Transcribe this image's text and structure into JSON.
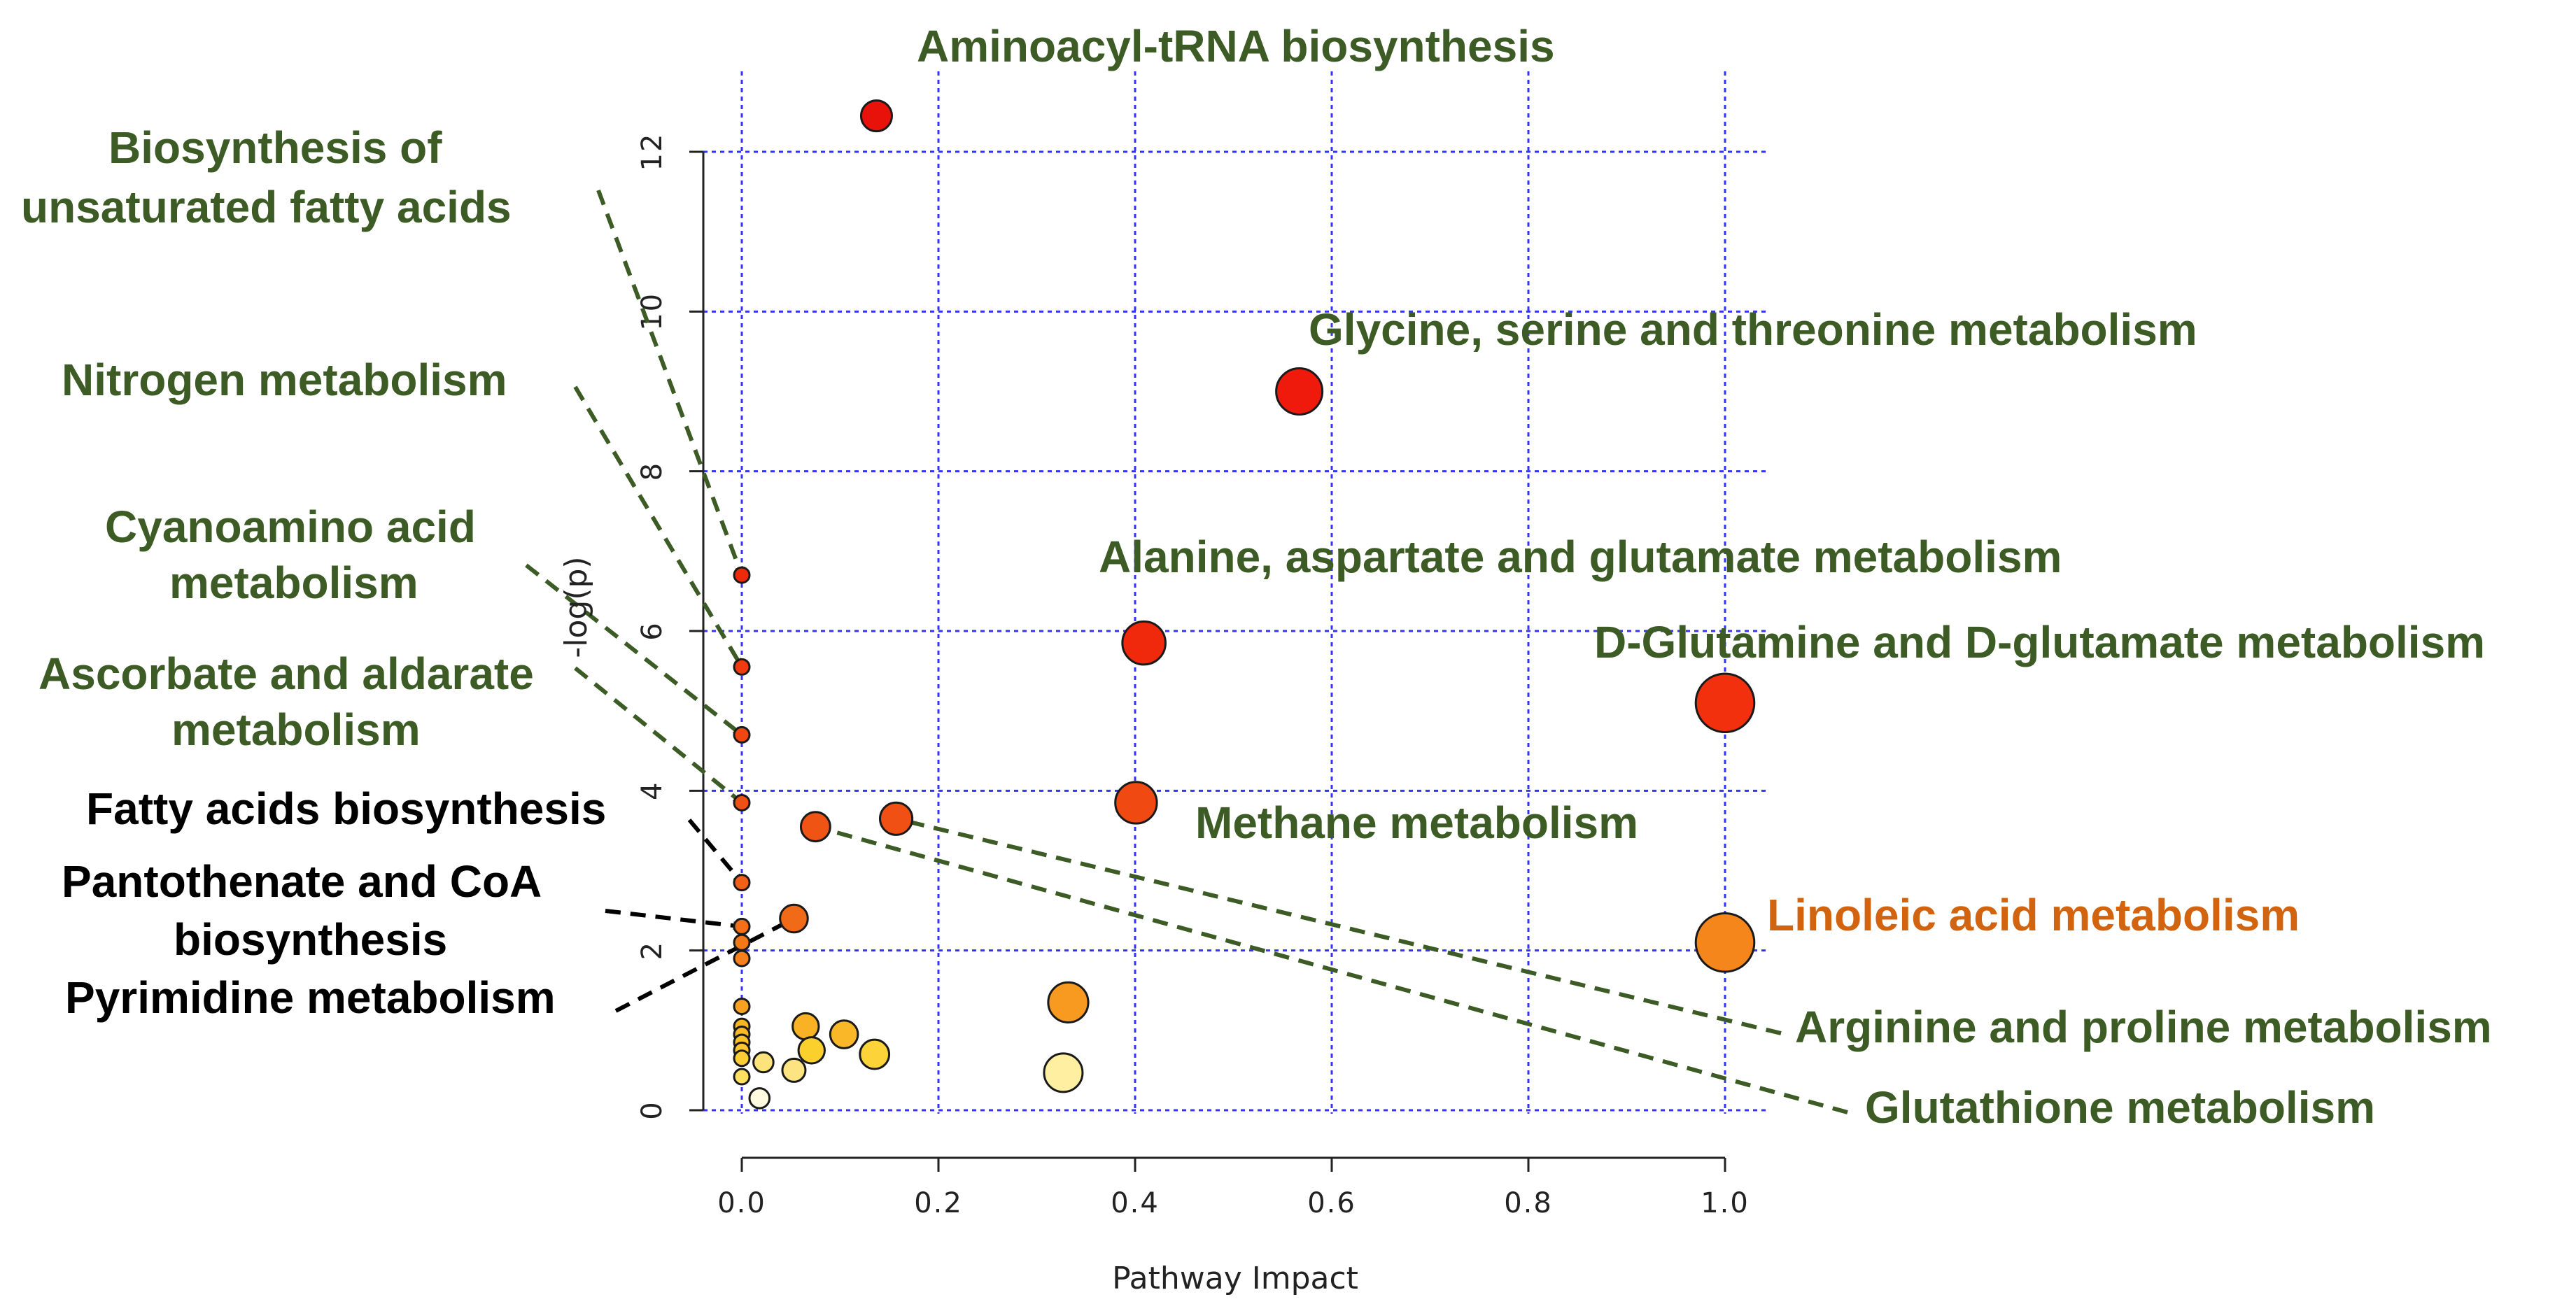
{
  "chart_data": {
    "type": "scatter",
    "title": "",
    "xlabel": "Pathway Impact",
    "ylabel": "-log(p)",
    "xlim": [
      -0.04,
      1.04
    ],
    "ylim": [
      -0.3,
      13.3
    ],
    "xticks": [
      0.0,
      0.2,
      0.4,
      0.6,
      0.8,
      1.0
    ],
    "yticks": [
      0,
      2,
      4,
      6,
      8,
      10,
      12
    ],
    "xtick_labels": [
      "0.0",
      "0.2",
      "0.4",
      "0.6",
      "0.8",
      "1.0"
    ],
    "ytick_labels": [
      "0",
      "2",
      "4",
      "6",
      "8",
      "10",
      "12"
    ],
    "grid": true,
    "points": [
      {
        "x": 0.137,
        "y": 12.45,
        "size": 2.0,
        "color": "#e8120a"
      },
      {
        "x": 0.567,
        "y": 9.0,
        "size": 3.0,
        "color": "#ef1a0c"
      },
      {
        "x": 0.409,
        "y": 5.85,
        "size": 2.8,
        "color": "#f0280c"
      },
      {
        "x": 1.0,
        "y": 5.1,
        "size": 3.8,
        "color": "#f2300e"
      },
      {
        "x": 0.401,
        "y": 3.85,
        "size": 2.7,
        "color": "#f04a12"
      },
      {
        "x": 0.157,
        "y": 3.65,
        "size": 2.1,
        "color": "#f05014"
      },
      {
        "x": 0.075,
        "y": 3.55,
        "size": 1.9,
        "color": "#f05414"
      },
      {
        "x": 1.0,
        "y": 2.1,
        "size": 3.8,
        "color": "#f5861c"
      },
      {
        "x": 0.053,
        "y": 2.4,
        "size": 1.8,
        "color": "#f06a18"
      },
      {
        "x": 0.0,
        "y": 6.7,
        "size": 1.0,
        "color": "#ef2a0c"
      },
      {
        "x": 0.0,
        "y": 5.55,
        "size": 1.0,
        "color": "#f03a10"
      },
      {
        "x": 0.0,
        "y": 4.7,
        "size": 1.0,
        "color": "#f04612"
      },
      {
        "x": 0.0,
        "y": 3.85,
        "size": 1.0,
        "color": "#f05014"
      },
      {
        "x": 0.0,
        "y": 2.85,
        "size": 1.0,
        "color": "#f26018"
      },
      {
        "x": 0.0,
        "y": 2.3,
        "size": 1.0,
        "color": "#f47018"
      },
      {
        "x": 0.0,
        "y": 2.1,
        "size": 1.0,
        "color": "#f47818"
      },
      {
        "x": 0.0,
        "y": 1.9,
        "size": 1.0,
        "color": "#f5801c"
      },
      {
        "x": 0.0,
        "y": 1.3,
        "size": 1.0,
        "color": "#f8a020"
      },
      {
        "x": 0.0,
        "y": 1.05,
        "size": 1.0,
        "color": "#f9b424"
      },
      {
        "x": 0.0,
        "y": 0.95,
        "size": 1.0,
        "color": "#fab828"
      },
      {
        "x": 0.0,
        "y": 0.85,
        "size": 1.0,
        "color": "#fbc02a"
      },
      {
        "x": 0.0,
        "y": 0.75,
        "size": 1.0,
        "color": "#fcc62e"
      },
      {
        "x": 0.0,
        "y": 0.65,
        "size": 1.0,
        "color": "#fccc34"
      },
      {
        "x": 0.0,
        "y": 0.42,
        "size": 1.0,
        "color": "#fde060"
      },
      {
        "x": 0.332,
        "y": 1.35,
        "size": 2.6,
        "color": "#f89a20"
      },
      {
        "x": 0.065,
        "y": 1.05,
        "size": 1.7,
        "color": "#f9b224"
      },
      {
        "x": 0.104,
        "y": 0.95,
        "size": 1.8,
        "color": "#fab828"
      },
      {
        "x": 0.071,
        "y": 0.75,
        "size": 1.7,
        "color": "#fcd02c"
      },
      {
        "x": 0.135,
        "y": 0.7,
        "size": 1.9,
        "color": "#fcd43a"
      },
      {
        "x": 0.022,
        "y": 0.6,
        "size": 1.3,
        "color": "#fde47a"
      },
      {
        "x": 0.053,
        "y": 0.5,
        "size": 1.5,
        "color": "#fde480"
      },
      {
        "x": 0.327,
        "y": 0.47,
        "size": 2.5,
        "color": "#fef0a0"
      },
      {
        "x": 0.018,
        "y": 0.15,
        "size": 1.3,
        "color": "#fffae0"
      }
    ],
    "annotations": [
      {
        "text": "Aminoacyl-tRNA biosynthesis",
        "color": "#3d5c25"
      },
      {
        "text": "Glycine, serine and threonine metabolism",
        "color": "#3d5c25"
      },
      {
        "text": "Alanine, aspartate and glutamate metabolism",
        "color": "#3d5c25"
      },
      {
        "text": "D-Glutamine and D-glutamate metabolism",
        "color": "#3d5c25"
      },
      {
        "text": "Methane metabolism",
        "color": "#3d5c25"
      },
      {
        "text": "Linoleic acid metabolism",
        "color": "#d2640f"
      },
      {
        "text": "Arginine and proline metabolism",
        "color": "#3d5c25"
      },
      {
        "text": "Glutathione metabolism",
        "color": "#3d5c25"
      },
      {
        "text": "Biosynthesis of",
        "color": "#3d5c25"
      },
      {
        "text": "unsaturated fatty acids",
        "color": "#3d5c25"
      },
      {
        "text": "Nitrogen metabolism",
        "color": "#3d5c25"
      },
      {
        "text": "Cyanoamino acid",
        "color": "#3d5c25"
      },
      {
        "text": "metabolism",
        "color": "#3d5c25"
      },
      {
        "text": "Ascorbate and aldarate",
        "color": "#3d5c25"
      },
      {
        "text": "metabolism",
        "color": "#3d5c25"
      },
      {
        "text": "Fatty acids biosynthesis",
        "color": "#000000"
      },
      {
        "text": "Pantothenate and CoA",
        "color": "#000000"
      },
      {
        "text": "biosynthesis",
        "color": "#000000"
      },
      {
        "text": "Pyrimidine metabolism",
        "color": "#000000"
      }
    ],
    "colors": {
      "grid": "#3333ff",
      "axis": "#222222",
      "leader_green": "#3d5c25",
      "leader_black": "#000000"
    }
  }
}
